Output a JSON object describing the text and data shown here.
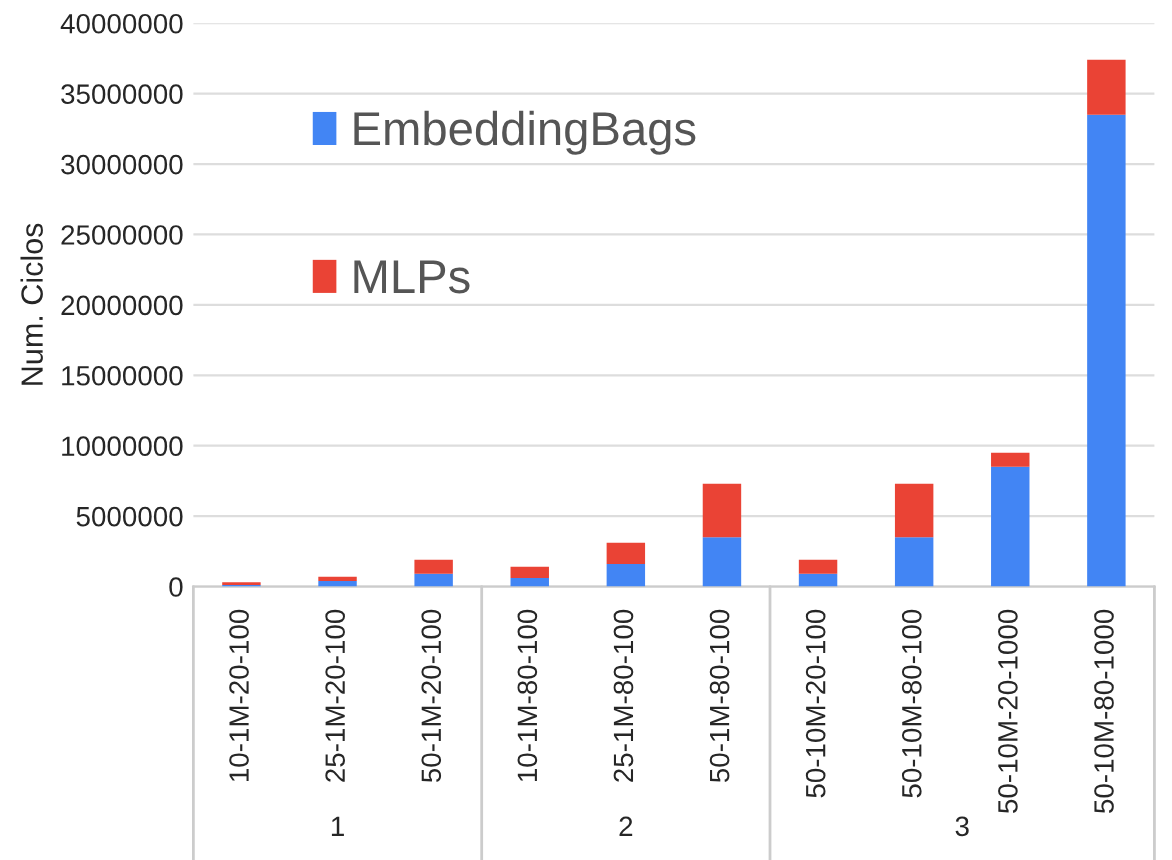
{
  "chart_data": {
    "type": "bar",
    "stacked": true,
    "ylabel": "Num. Ciclos",
    "categories": [
      "10-1M-20-100",
      "25-1M-20-100",
      "50-1M-20-100",
      "10-1M-80-100",
      "25-1M-80-100",
      "50-1M-80-100",
      "50-10M-20-100",
      "50-10M-80-100",
      "50-10M-20-1000",
      "50-10M-80-1000"
    ],
    "series": [
      {
        "name": "EmbeddingBags",
        "color": "#4285f4",
        "values": [
          100000,
          400000,
          900000,
          600000,
          1600000,
          3500000,
          900000,
          3500000,
          8500000,
          33500000
        ]
      },
      {
        "name": "MLPs",
        "color": "#ea4335",
        "values": [
          200000,
          300000,
          1000000,
          800000,
          1500000,
          3800000,
          1000000,
          3800000,
          1000000,
          3900000
        ]
      }
    ],
    "ylim": [
      0,
      40000000
    ],
    "yticks": [
      0,
      5000000,
      10000000,
      15000000,
      20000000,
      25000000,
      30000000,
      35000000,
      40000000
    ],
    "grid": "y",
    "legend": "top left",
    "annotations": [
      "1",
      "2",
      "3"
    ]
  }
}
